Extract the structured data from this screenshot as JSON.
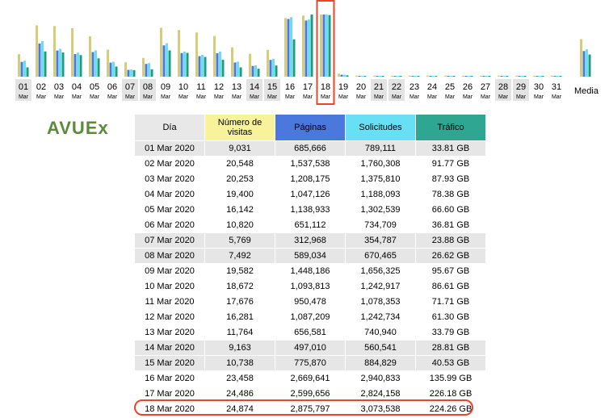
{
  "chart_data": {
    "type": "bar",
    "categories": [
      "01",
      "02",
      "03",
      "04",
      "05",
      "06",
      "07",
      "08",
      "09",
      "10",
      "11",
      "12",
      "13",
      "14",
      "15",
      "16",
      "17",
      "18",
      "19",
      "20",
      "21",
      "22",
      "23",
      "24",
      "25",
      "26",
      "27",
      "28",
      "29",
      "30",
      "31"
    ],
    "sublabel": "Mar",
    "weekend_days": [
      "01",
      "07",
      "08",
      "14",
      "15",
      "21",
      "22",
      "28",
      "29"
    ],
    "highlighted_day": "18",
    "average_label": "Media",
    "series": [
      {
        "name": "Número de visitas",
        "color": "#d6cd7a",
        "values": [
          9031,
          20548,
          20253,
          19400,
          16142,
          10820,
          5769,
          7492,
          19582,
          18672,
          17676,
          16281,
          11764,
          9163,
          10738,
          23458,
          24486,
          24874,
          1200,
          400,
          400,
          400,
          400,
          400,
          400,
          400,
          400,
          400,
          400,
          400,
          400
        ],
        "average": 15020
      },
      {
        "name": "Páginas",
        "color": "#4a78dd",
        "values": [
          685666,
          1537538,
          1208175,
          1047126,
          1138933,
          651112,
          312968,
          589034,
          1448186,
          1093813,
          950478,
          1087209,
          656581,
          497010,
          775870,
          2669641,
          2599656,
          2875797,
          90000,
          30000,
          30000,
          30000,
          30000,
          30000,
          30000,
          30000,
          30000,
          30000,
          30000,
          30000,
          30000
        ],
        "average": 1185000
      },
      {
        "name": "Solicitudes",
        "color": "#66e0f2",
        "values": [
          789111,
          1760308,
          1375810,
          1188093,
          1302539,
          734709,
          354787,
          670465,
          1656325,
          1242917,
          1078353,
          1242734,
          740940,
          560541,
          884829,
          2940833,
          2824158,
          3073538,
          100000,
          35000,
          35000,
          35000,
          35000,
          35000,
          35000,
          35000,
          35000,
          35000,
          35000,
          35000,
          35000
        ],
        "average": 1352000
      },
      {
        "name": "Tráfico",
        "color": "#1e9c82",
        "values": [
          33.81,
          91.77,
          87.93,
          78.38,
          66.6,
          36.81,
          23.88,
          26.62,
          95.67,
          86.61,
          71.71,
          61.3,
          33.79,
          28.81,
          40.53,
          135.99,
          226.18,
          224.26,
          5,
          1.5,
          1.5,
          1.5,
          1.5,
          1.5,
          1.5,
          1.5,
          1.5,
          1.5,
          1.5,
          1.5,
          1.5
        ],
        "average": 80.5
      }
    ]
  },
  "logo": {
    "text": "AVUEx",
    "color": "#5b8a3a"
  },
  "table": {
    "headers": {
      "day": "Día",
      "visits": "Número de visitas",
      "pages": "Páginas",
      "requests": "Solicitudes",
      "traffic": "Tráfico"
    },
    "rows": [
      {
        "day": "01 Mar 2020",
        "visits": "9,031",
        "pages": "685,666",
        "requests": "789,111",
        "traffic": "33.81 GB",
        "weekend": true
      },
      {
        "day": "02 Mar 2020",
        "visits": "20,548",
        "pages": "1,537,538",
        "requests": "1,760,308",
        "traffic": "91.77 GB",
        "weekend": false
      },
      {
        "day": "03 Mar 2020",
        "visits": "20,253",
        "pages": "1,208,175",
        "requests": "1,375,810",
        "traffic": "87.93 GB",
        "weekend": false
      },
      {
        "day": "04 Mar 2020",
        "visits": "19,400",
        "pages": "1,047,126",
        "requests": "1,188,093",
        "traffic": "78.38 GB",
        "weekend": false
      },
      {
        "day": "05 Mar 2020",
        "visits": "16,142",
        "pages": "1,138,933",
        "requests": "1,302,539",
        "traffic": "66.60 GB",
        "weekend": false
      },
      {
        "day": "06 Mar 2020",
        "visits": "10,820",
        "pages": "651,112",
        "requests": "734,709",
        "traffic": "36.81 GB",
        "weekend": false
      },
      {
        "day": "07 Mar 2020",
        "visits": "5,769",
        "pages": "312,968",
        "requests": "354,787",
        "traffic": "23.88 GB",
        "weekend": true
      },
      {
        "day": "08 Mar 2020",
        "visits": "7,492",
        "pages": "589,034",
        "requests": "670,465",
        "traffic": "26.62 GB",
        "weekend": true
      },
      {
        "day": "09 Mar 2020",
        "visits": "19,582",
        "pages": "1,448,186",
        "requests": "1,656,325",
        "traffic": "95.67 GB",
        "weekend": false
      },
      {
        "day": "10 Mar 2020",
        "visits": "18,672",
        "pages": "1,093,813",
        "requests": "1,242,917",
        "traffic": "86.61 GB",
        "weekend": false
      },
      {
        "day": "11 Mar 2020",
        "visits": "17,676",
        "pages": "950,478",
        "requests": "1,078,353",
        "traffic": "71.71 GB",
        "weekend": false
      },
      {
        "day": "12 Mar 2020",
        "visits": "16,281",
        "pages": "1,087,209",
        "requests": "1,242,734",
        "traffic": "61.30 GB",
        "weekend": false
      },
      {
        "day": "13 Mar 2020",
        "visits": "11,764",
        "pages": "656,581",
        "requests": "740,940",
        "traffic": "33.79 GB",
        "weekend": false
      },
      {
        "day": "14 Mar 2020",
        "visits": "9,163",
        "pages": "497,010",
        "requests": "560,541",
        "traffic": "28.81 GB",
        "weekend": true
      },
      {
        "day": "15 Mar 2020",
        "visits": "10,738",
        "pages": "775,870",
        "requests": "884,829",
        "traffic": "40.53 GB",
        "weekend": true
      },
      {
        "day": "16 Mar 2020",
        "visits": "23,458",
        "pages": "2,669,641",
        "requests": "2,940,833",
        "traffic": "135.99 GB",
        "weekend": false
      },
      {
        "day": "17 Mar 2020",
        "visits": "24,486",
        "pages": "2,599,656",
        "requests": "2,824,158",
        "traffic": "226.18 GB",
        "weekend": false
      },
      {
        "day": "18 Mar 2020",
        "visits": "24,874",
        "pages": "2,875,797",
        "requests": "3,073,538",
        "traffic": "224.26 GB",
        "weekend": false
      }
    ]
  },
  "highlight_color": "#e8452a"
}
